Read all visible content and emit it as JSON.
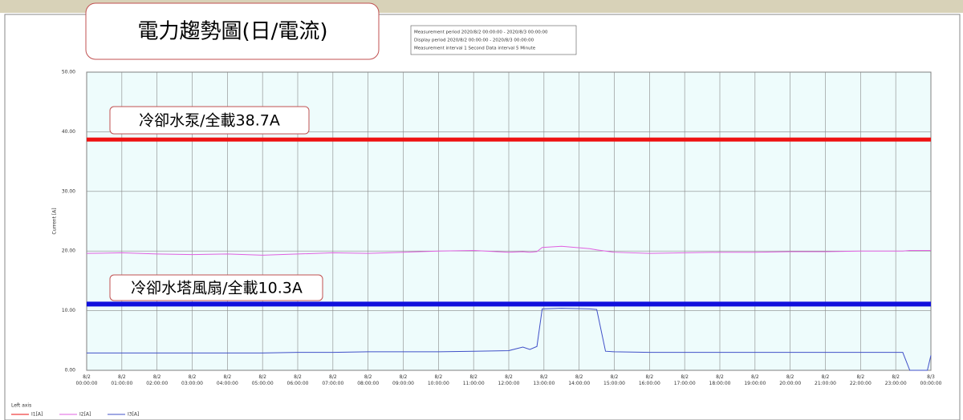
{
  "chart_data": {
    "type": "line",
    "title": "電力趨勢圖(日/電流)",
    "info": [
      "Measurement period  2020/8/2 00:00:00 - 2020/8/3 00:00:00",
      "Display period  2020/8/2 00:00:00 - 2020/8/3 00:00:00",
      "Measurement interval  1 Second  Data interval  5 Minute"
    ],
    "y_label": "Current [A]",
    "legend_title": "Left axis",
    "xlim": [
      0,
      24
    ],
    "ylim": [
      0,
      50
    ],
    "yticks": [
      {
        "value": 0,
        "label": "0.00"
      },
      {
        "value": 10,
        "label": "10.00"
      },
      {
        "value": 20,
        "label": "20.00"
      },
      {
        "value": 30,
        "label": "30.00"
      },
      {
        "value": 40,
        "label": "40.00"
      },
      {
        "value": 50,
        "label": "50.00"
      }
    ],
    "xticks": [
      {
        "value": 0,
        "label": "8/2 00:00:00"
      },
      {
        "value": 1,
        "label": "8/2 01:00:00"
      },
      {
        "value": 2,
        "label": "8/2 02:00:00"
      },
      {
        "value": 3,
        "label": "8/2 03:00:00"
      },
      {
        "value": 4,
        "label": "8/2 04:00:00"
      },
      {
        "value": 5,
        "label": "8/2 05:00:00"
      },
      {
        "value": 6,
        "label": "8/2 06:00:00"
      },
      {
        "value": 7,
        "label": "8/2 07:00:00"
      },
      {
        "value": 8,
        "label": "8/2 08:00:00"
      },
      {
        "value": 9,
        "label": "8/2 09:00:00"
      },
      {
        "value": 10,
        "label": "8/2 10:00:00"
      },
      {
        "value": 11,
        "label": "8/2 11:00:00"
      },
      {
        "value": 12,
        "label": "8/2 12:00:00"
      },
      {
        "value": 13,
        "label": "8/2 13:00:00"
      },
      {
        "value": 14,
        "label": "8/2 14:00:00"
      },
      {
        "value": 15,
        "label": "8/2 15:00:00"
      },
      {
        "value": 16,
        "label": "8/2 16:00:00"
      },
      {
        "value": 17,
        "label": "8/2 17:00:00"
      },
      {
        "value": 18,
        "label": "8/2 18:00:00"
      },
      {
        "value": 19,
        "label": "8/2 19:00:00"
      },
      {
        "value": 20,
        "label": "8/2 20:00:00"
      },
      {
        "value": 21,
        "label": "8/2 21:00:00"
      },
      {
        "value": 22,
        "label": "8/2 22:00:00"
      },
      {
        "value": 23,
        "label": "8/2 23:00:00"
      },
      {
        "value": 24,
        "label": "8/3 00:00:00"
      }
    ],
    "grid": true,
    "x": [
      0,
      1,
      2,
      3,
      4,
      5,
      6,
      7,
      8,
      9,
      10,
      11,
      12,
      12.4,
      12.6,
      12.8,
      12.95,
      13.5,
      14.3,
      14.5,
      14.75,
      15,
      16,
      17,
      18,
      19,
      20,
      21,
      22,
      23,
      23.2,
      23.4,
      23.9,
      24
    ],
    "series": [
      {
        "name": "I1[A]",
        "color": "#ee1111",
        "line_width": 5,
        "values": [
          38.7,
          38.7,
          38.7,
          38.7,
          38.7,
          38.7,
          38.7,
          38.7,
          38.7,
          38.7,
          38.7,
          38.7,
          38.7,
          38.7,
          38.7,
          38.7,
          38.7,
          38.7,
          38.7,
          38.7,
          38.7,
          38.7,
          38.7,
          38.7,
          38.7,
          38.7,
          38.7,
          38.7,
          38.7,
          38.7,
          38.7,
          38.7,
          38.7,
          38.7
        ]
      },
      {
        "name": "I2[A]",
        "color": "#e060e0",
        "line_width": 1,
        "values": [
          19.6,
          19.7,
          19.5,
          19.4,
          19.5,
          19.3,
          19.5,
          19.7,
          19.6,
          19.8,
          20.0,
          20.1,
          19.8,
          19.9,
          19.8,
          19.9,
          20.6,
          20.8,
          20.4,
          20.2,
          20.0,
          19.8,
          19.6,
          19.7,
          19.8,
          19.8,
          19.9,
          19.9,
          20.0,
          20.0,
          20.0,
          20.1,
          20.1,
          20.1
        ]
      },
      {
        "name": "I3[A]",
        "color": "#4050c8",
        "line_width": 1,
        "values": [
          2.9,
          2.9,
          2.9,
          2.9,
          2.9,
          2.9,
          3.0,
          3.0,
          3.1,
          3.1,
          3.1,
          3.2,
          3.3,
          3.9,
          3.5,
          4.0,
          10.3,
          10.4,
          10.3,
          10.2,
          3.2,
          3.1,
          3.0,
          3.0,
          3.0,
          3.0,
          3.0,
          3.0,
          3.0,
          3.0,
          3.0,
          0.0,
          0.0,
          2.5
        ]
      }
    ],
    "reference_line": {
      "value": 11.1,
      "color": "#1010dd"
    },
    "annotations": [
      "冷卻水泵/全載38.7A",
      "冷卻水塔風扇/全載10.3A"
    ]
  }
}
